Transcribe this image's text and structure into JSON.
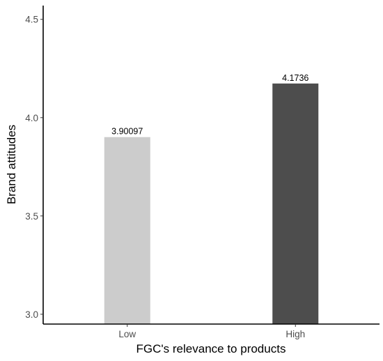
{
  "chart_data": {
    "type": "bar",
    "categories": [
      "Low",
      "High"
    ],
    "values": [
      3.90097,
      4.1736
    ],
    "data_labels": [
      "3.90097",
      "4.1736"
    ],
    "colors": [
      "#cccccc",
      "#4d4d4d"
    ],
    "xlabel": "FGC's relevance to products",
    "ylabel": "Brand attitudes",
    "ylim": [
      2.95,
      4.57
    ],
    "yticks": [
      3.0,
      3.5,
      4.0,
      4.5
    ],
    "ytick_labels": [
      "3.0",
      "3.5",
      "4.0",
      "4.5"
    ],
    "grid": false,
    "legend": "none"
  }
}
